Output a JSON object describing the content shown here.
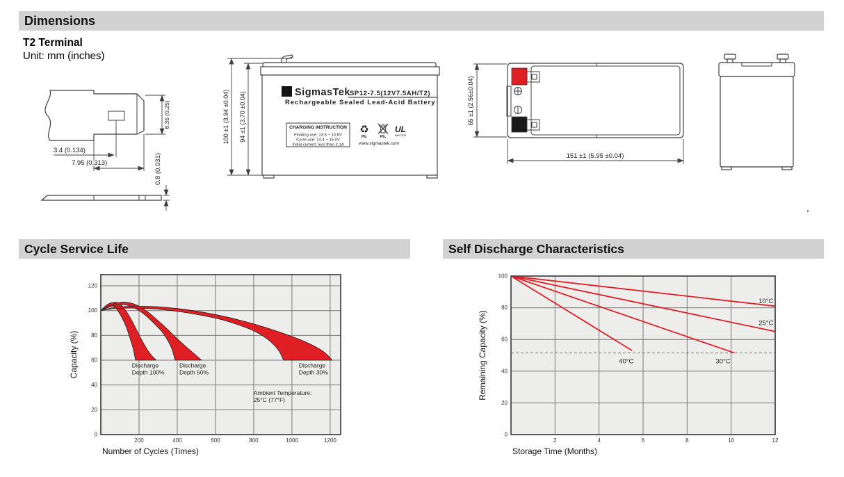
{
  "colors": {
    "header_bg": "#d2d2d2",
    "red": "#e01f25",
    "plot_bg": "#ededeb",
    "grid": "#767676",
    "border": "#4a4a4a",
    "dash": "#777777"
  },
  "header": {
    "dimensions": "Dimensions",
    "cycle": "Cycle Service Life",
    "self_discharge": "Self Discharge Characteristics"
  },
  "terminal_drawing": {
    "heading": "T2 Terminal",
    "unit": "Unit: mm (inches)",
    "dim_hole_offset": "3.4 (0.134)",
    "dim_blade_width": "7.95 (0.313)",
    "dim_blade_height": "6.35 (0.25)",
    "dim_thickness": "0.8 (0.031)"
  },
  "front_view": {
    "dim_total_height": "100 ±1 (3.94 ±0.04)",
    "dim_case_height": "94 ±1 (3.70 ±0.04)",
    "label": {
      "logo_sigma": "Σ",
      "brand": "SigmasTek",
      "model": "SP12-7.5(12V7.5AH/T2)",
      "subtitle": "Rechargeable Sealed Lead-Acid Battery",
      "charging_title": "CHARGING INSTRUCTION",
      "charging_line1": "Floating use: 13.5 ~ 13.8V",
      "charging_line2": "Cycle use: 14.4 ~ 15.0V",
      "charging_line3": "Initial current: less than 2.1A",
      "pb_recycle": "Pb.",
      "pb_trash": "Pb.",
      "ul_letters": "UL",
      "ul_code": "MH47929",
      "website": "www.sigmastek.com"
    }
  },
  "top_view": {
    "dim_width": "65 ±1 (2.56±0.04)",
    "dim_length": "151 ±1 (5.95 ±0.04)"
  },
  "chart_data": [
    {
      "type": "area",
      "title": "Cycle Service Life",
      "xlabel": "Number of Cycles (Times)",
      "ylabel": "Capacity (%)",
      "xlim": [
        0,
        1255
      ],
      "ylim": [
        0,
        129
      ],
      "xticks": [
        200,
        400,
        600,
        800,
        1000,
        1200
      ],
      "yticks": [
        0,
        20,
        40,
        60,
        80,
        100,
        120
      ],
      "grid": true,
      "legend_position": "none",
      "bands": [
        {
          "name": "Discharge Depth 100%",
          "upper": [
            [
              0,
              100
            ],
            [
              30,
              104.5
            ],
            [
              60,
              106.5
            ],
            [
              95,
              106
            ],
            [
              125,
              101
            ],
            [
              155,
              94
            ],
            [
              185,
              85
            ],
            [
              215,
              76
            ],
            [
              245,
              68
            ],
            [
              270,
              63
            ],
            [
              291,
              60
            ]
          ],
          "lower": [
            [
              0,
              100
            ],
            [
              25,
              102.5
            ],
            [
              50,
              104
            ],
            [
              72,
              103
            ],
            [
              95,
              98.5
            ],
            [
              115,
              93
            ],
            [
              135,
              86
            ],
            [
              152,
              78
            ],
            [
              168,
              70
            ],
            [
              182,
              60
            ]
          ]
        },
        {
          "name": "Discharge Depth 50%",
          "upper": [
            [
              0,
              100
            ],
            [
              45,
              104
            ],
            [
              95,
              106.5
            ],
            [
              145,
              106.5
            ],
            [
              195,
              104
            ],
            [
              245,
              99
            ],
            [
              295,
              92.5
            ],
            [
              345,
              85.5
            ],
            [
              395,
              78
            ],
            [
              445,
              71
            ],
            [
              490,
              65
            ],
            [
              527,
              60
            ]
          ],
          "lower": [
            [
              0,
              100
            ],
            [
              38,
              102.5
            ],
            [
              85,
              104.5
            ],
            [
              135,
              104.5
            ],
            [
              185,
              101.5
            ],
            [
              235,
              96
            ],
            [
              280,
              89.5
            ],
            [
              320,
              83
            ],
            [
              350,
              76
            ],
            [
              372,
              69
            ],
            [
              389,
              60
            ]
          ]
        },
        {
          "name": "Discharge Depth 30%",
          "upper": [
            [
              0,
              100
            ],
            [
              70,
              102.5
            ],
            [
              160,
              103.5
            ],
            [
              310,
              103
            ],
            [
              460,
              100.5
            ],
            [
              610,
              96.5
            ],
            [
              760,
              91
            ],
            [
              910,
              84
            ],
            [
              1060,
              75.5
            ],
            [
              1160,
              67.5
            ],
            [
              1211,
              60
            ]
          ],
          "lower": [
            [
              0,
              100
            ],
            [
              70,
              101.5
            ],
            [
              160,
              102
            ],
            [
              310,
              101
            ],
            [
              460,
              98
            ],
            [
              610,
              93.5
            ],
            [
              720,
              88.5
            ],
            [
              810,
              83
            ],
            [
              880,
              76
            ],
            [
              930,
              68
            ],
            [
              956,
              60
            ]
          ]
        }
      ],
      "annotations": [
        {
          "lines": [
            "Discharge",
            "Depth 100%"
          ],
          "x": 163,
          "y": 58.5
        },
        {
          "lines": [
            "Discharge",
            "Depth 50%"
          ],
          "x": 411,
          "y": 58.5
        },
        {
          "lines": [
            "Discharge",
            "Depth 30%"
          ],
          "x": 1036,
          "y": 58.5
        },
        {
          "lines": [
            "Ambient Temperature:",
            "25°C (77°F)"
          ],
          "x": 800,
          "y": 36.5
        }
      ]
    },
    {
      "type": "line",
      "title": "Self Discharge Characteristics",
      "xlabel": "Storage Time (Months)",
      "ylabel": "Remaining Capacity (%)",
      "xlim": [
        0,
        12
      ],
      "ylim": [
        0,
        100
      ],
      "xticks": [
        2,
        4,
        6,
        8,
        10,
        12
      ],
      "yticks": [
        0,
        20,
        40,
        60,
        80,
        100
      ],
      "grid": true,
      "legend_position": "inline",
      "dashed_y": 51.5,
      "series": [
        {
          "name": "10°C",
          "points": [
            [
              0,
              100
            ],
            [
              12,
              81
            ]
          ],
          "label": {
            "text": "10°C",
            "x": 11.25,
            "y": 83
          }
        },
        {
          "name": "25°C",
          "points": [
            [
              0,
              100
            ],
            [
              12,
              65
            ]
          ],
          "label": {
            "text": "25°C",
            "x": 11.25,
            "y": 69
          }
        },
        {
          "name": "30°C",
          "points": [
            [
              0,
              100
            ],
            [
              10.15,
              51.5
            ]
          ],
          "label": {
            "text": "30°C",
            "x": 9.3,
            "y": 45
          }
        },
        {
          "name": "40°C",
          "points": [
            [
              0,
              100
            ],
            [
              5.5,
              53
            ]
          ],
          "label": {
            "text": "40°C",
            "x": 4.9,
            "y": 45
          }
        }
      ]
    }
  ]
}
